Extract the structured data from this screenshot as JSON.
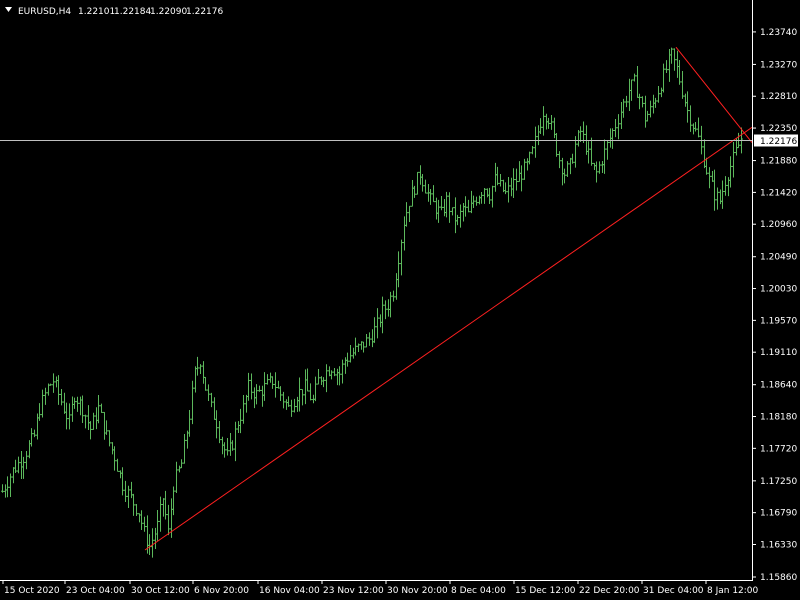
{
  "chart_data": {
    "type": "bar",
    "title": "EURUSD,H4",
    "ohlc_header": {
      "open": "1.22101",
      "high": "1.22184",
      "low": "1.22090",
      "close": "1.22176"
    },
    "current_price": 1.22176,
    "current_price_label": "1.22176",
    "ylim": [
      1.1586,
      1.2397
    ],
    "y_ticks": [
      "1.23740",
      "1.23270",
      "1.22810",
      "1.22350",
      "1.21880",
      "1.21420",
      "1.20960",
      "1.20490",
      "1.20030",
      "1.19570",
      "1.19110",
      "1.18640",
      "1.18180",
      "1.17720",
      "1.17250",
      "1.16790",
      "1.16330",
      "1.15860"
    ],
    "x_ticks": [
      "15 Oct 2020",
      "23 Oct 04:00",
      "30 Oct 12:00",
      "6 Nov 20:00",
      "16 Nov 04:00",
      "23 Nov 12:00",
      "30 Nov 20:00",
      "8 Dec 04:00",
      "15 Dec 12:00",
      "22 Dec 20:00",
      "31 Dec 04:00",
      "8 Jan 12:00"
    ],
    "grid": false,
    "colors": {
      "background": "#000000",
      "bars": "#5cb85c",
      "trendline": "#ff2020",
      "price_line": "#c0c0c0",
      "text": "#ffffff",
      "axis": "#ffffff"
    },
    "trendlines": [
      {
        "from": {
          "x": "30 Oct 12:00",
          "y": 1.1625
        },
        "to": {
          "x": "8 Jan 12:00",
          "y": 1.2236
        }
      },
      {
        "from": {
          "x": "31 Dec 04:00",
          "y": 1.2352
        },
        "to": {
          "x": "8 Jan 12:00",
          "y": 1.2214
        }
      }
    ],
    "series_close_path": [
      [
        0,
        1.171
      ],
      [
        4,
        1.174
      ],
      [
        8,
        1.176
      ],
      [
        12,
        1.179
      ],
      [
        14,
        1.183
      ],
      [
        17,
        1.186
      ],
      [
        19,
        1.187
      ],
      [
        22,
        1.184
      ],
      [
        25,
        1.181
      ],
      [
        27,
        1.185
      ],
      [
        30,
        1.183
      ],
      [
        33,
        1.18
      ],
      [
        36,
        1.183
      ],
      [
        39,
        1.179
      ],
      [
        42,
        1.176
      ],
      [
        45,
        1.172
      ],
      [
        48,
        1.17
      ],
      [
        51,
        1.168
      ],
      [
        53,
        1.165
      ],
      [
        55,
        1.163
      ],
      [
        58,
        1.166
      ],
      [
        60,
        1.17
      ],
      [
        62,
        1.165
      ],
      [
        64,
        1.172
      ],
      [
        67,
        1.175
      ],
      [
        70,
        1.182
      ],
      [
        72,
        1.188
      ],
      [
        74,
        1.19
      ],
      [
        76,
        1.186
      ],
      [
        78,
        1.183
      ],
      [
        80,
        1.181
      ],
      [
        82,
        1.178
      ],
      [
        84,
        1.176
      ],
      [
        86,
        1.178
      ],
      [
        88,
        1.181
      ],
      [
        90,
        1.183
      ],
      [
        92,
        1.186
      ],
      [
        95,
        1.185
      ],
      [
        98,
        1.186
      ],
      [
        101,
        1.187
      ],
      [
        104,
        1.185
      ],
      [
        107,
        1.183
      ],
      [
        110,
        1.185
      ],
      [
        113,
        1.186
      ],
      [
        116,
        1.184
      ],
      [
        118,
        1.187
      ],
      [
        120,
        1.188
      ],
      [
        123,
        1.189
      ],
      [
        126,
        1.188
      ],
      [
        128,
        1.19
      ],
      [
        131,
        1.191
      ],
      [
        134,
        1.192
      ],
      [
        137,
        1.193
      ],
      [
        140,
        1.195
      ],
      [
        142,
        1.197
      ],
      [
        144,
        1.198
      ],
      [
        146,
        1.2
      ],
      [
        148,
        1.205
      ],
      [
        150,
        1.21
      ],
      [
        152,
        1.213
      ],
      [
        154,
        1.215
      ],
      [
        156,
        1.217
      ],
      [
        158,
        1.215
      ],
      [
        160,
        1.213
      ],
      [
        162,
        1.212
      ],
      [
        164,
        1.211
      ],
      [
        166,
        1.213
      ],
      [
        168,
        1.211
      ],
      [
        170,
        1.21
      ],
      [
        172,
        1.212
      ],
      [
        174,
        1.211
      ],
      [
        176,
        1.213
      ],
      [
        178,
        1.214
      ],
      [
        180,
        1.215
      ],
      [
        182,
        1.214
      ],
      [
        184,
        1.216
      ],
      [
        186,
        1.215
      ],
      [
        188,
        1.214
      ],
      [
        190,
        1.215
      ],
      [
        192,
        1.216
      ],
      [
        194,
        1.217
      ],
      [
        196,
        1.218
      ],
      [
        198,
        1.22
      ],
      [
        200,
        1.223
      ],
      [
        202,
        1.226
      ],
      [
        204,
        1.225
      ],
      [
        206,
        1.222
      ],
      [
        208,
        1.219
      ],
      [
        210,
        1.217
      ],
      [
        212,
        1.218
      ],
      [
        214,
        1.221
      ],
      [
        216,
        1.223
      ],
      [
        218,
        1.221
      ],
      [
        220,
        1.218
      ],
      [
        222,
        1.217
      ],
      [
        224,
        1.219
      ],
      [
        226,
        1.221
      ],
      [
        228,
        1.223
      ],
      [
        230,
        1.225
      ],
      [
        232,
        1.227
      ],
      [
        234,
        1.229
      ],
      [
        236,
        1.23
      ],
      [
        238,
        1.228
      ],
      [
        240,
        1.225
      ],
      [
        242,
        1.226
      ],
      [
        244,
        1.228
      ],
      [
        246,
        1.23
      ],
      [
        248,
        1.232
      ],
      [
        250,
        1.234
      ],
      [
        252,
        1.232
      ],
      [
        254,
        1.229
      ],
      [
        256,
        1.226
      ],
      [
        258,
        1.224
      ],
      [
        260,
        1.222
      ],
      [
        262,
        1.219
      ],
      [
        264,
        1.216
      ],
      [
        266,
        1.214
      ],
      [
        268,
        1.213
      ],
      [
        270,
        1.216
      ],
      [
        272,
        1.218
      ],
      [
        274,
        1.22
      ],
      [
        276,
        1.222
      ]
    ]
  }
}
